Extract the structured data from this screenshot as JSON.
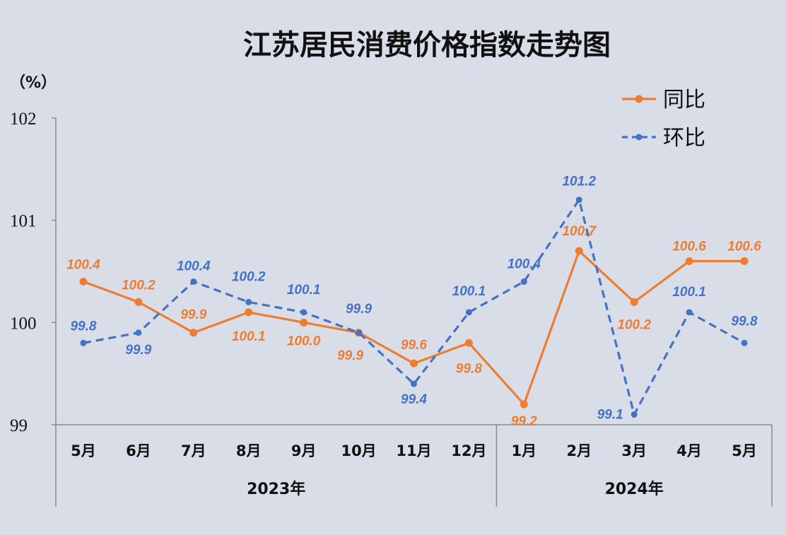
{
  "chart_data": {
    "type": "line",
    "title": "江苏居民消费价格指数走势图",
    "unit_label": "（%）",
    "categories": [
      "5月",
      "6月",
      "7月",
      "8月",
      "9月",
      "10月",
      "11月",
      "12月",
      "1月",
      "2月",
      "3月",
      "4月",
      "5月"
    ],
    "groups": [
      {
        "label": "2023年",
        "start": 0,
        "end": 7
      },
      {
        "label": "2024年",
        "start": 8,
        "end": 12
      }
    ],
    "ylim": [
      99,
      102
    ],
    "yticks": [
      "99",
      "100",
      "101",
      "102"
    ],
    "grid": false,
    "legend_position": "top-right",
    "series": [
      {
        "name": "同比",
        "color": "#ed7d31",
        "style": "solid",
        "values": [
          100.4,
          100.2,
          99.9,
          100.1,
          100.0,
          99.9,
          99.6,
          99.8,
          99.2,
          100.7,
          100.2,
          100.6,
          100.6
        ],
        "labels": [
          "100.4",
          "100.2",
          "99.9",
          "100.1",
          "100.0",
          "99.9",
          "99.6",
          "99.8",
          "99.2",
          "100.7",
          "100.2",
          "100.6",
          "100.6"
        ]
      },
      {
        "name": "环比",
        "color": "#4472c4",
        "style": "dashed",
        "values": [
          99.8,
          99.9,
          100.4,
          100.2,
          100.1,
          99.9,
          99.4,
          100.1,
          100.4,
          101.2,
          99.1,
          100.1,
          99.8
        ],
        "labels": [
          "99.8",
          "99.9",
          "100.4",
          "100.2",
          "100.1",
          "99.9",
          "99.4",
          "100.1",
          "100.4",
          "101.2",
          "99.1",
          "100.1",
          "99.8"
        ]
      }
    ]
  }
}
